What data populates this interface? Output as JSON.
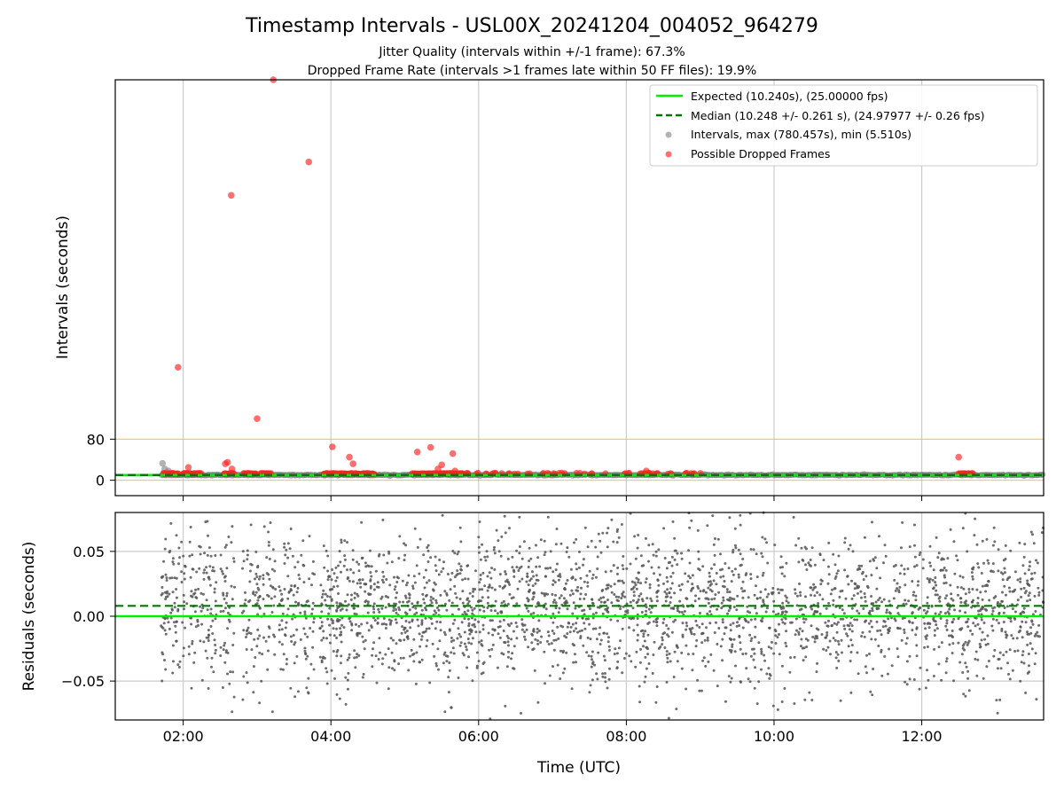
{
  "title": "Timestamp Intervals - USL00X_20241204_004052_964279",
  "subtitle_1": "Jitter Quality (intervals within +/-1 frame): 67.3%",
  "subtitle_2": "Dropped Frame Rate (intervals >1 frames late within 50 FF files): 19.9%",
  "colors": {
    "expected": "#00ee00",
    "median": "#007700",
    "intervals": "#808080",
    "dropped": "#ff2222",
    "threshold": "#f5c542",
    "residuals": "#555555",
    "grid": "#cccccc"
  },
  "chart_data": [
    {
      "type": "scatter",
      "panel": "top",
      "ylabel": "Intervals (seconds)",
      "x_unit": "hours UTC",
      "xlim": [
        1.08,
        13.65
      ],
      "ylim": [
        -30,
        780
      ],
      "yticks": [
        0,
        80
      ],
      "ytick_labels": [
        "0",
        "80"
      ],
      "threshold_line": 80,
      "grid": "x-only",
      "legend_position": "top-right",
      "legend": [
        "Expected (10.240s), (25.00000 fps)",
        "Median (10.248 +/- 0.261 s), (24.97977 +/- 0.26 fps)",
        "Intervals, max (780.457s), min (5.510s)",
        "Possible Dropped Frames"
      ],
      "expected_value": 10.24,
      "median_value": 10.248,
      "data_range_hours": [
        1.7,
        13.65
      ],
      "typical_interval": 10.25,
      "gray_outliers": [
        {
          "x": 1.72,
          "y": 33
        },
        {
          "x": 1.75,
          "y": 22
        },
        {
          "x": 1.8,
          "y": 18
        }
      ],
      "dropped_frames": [
        {
          "x": 1.93,
          "y": 220
        },
        {
          "x": 2.07,
          "y": 25
        },
        {
          "x": 2.57,
          "y": 32
        },
        {
          "x": 2.6,
          "y": 35
        },
        {
          "x": 2.65,
          "y": 555
        },
        {
          "x": 2.66,
          "y": 22
        },
        {
          "x": 3.0,
          "y": 120
        },
        {
          "x": 3.22,
          "y": 780
        },
        {
          "x": 3.7,
          "y": 620
        },
        {
          "x": 4.02,
          "y": 65
        },
        {
          "x": 4.25,
          "y": 45
        },
        {
          "x": 4.3,
          "y": 32
        },
        {
          "x": 5.17,
          "y": 55
        },
        {
          "x": 5.35,
          "y": 64
        },
        {
          "x": 5.45,
          "y": 22
        },
        {
          "x": 5.5,
          "y": 30
        },
        {
          "x": 5.65,
          "y": 52
        },
        {
          "x": 5.68,
          "y": 18
        },
        {
          "x": 8.27,
          "y": 18
        },
        {
          "x": 12.5,
          "y": 45
        }
      ],
      "dropped_clusters": [
        [
          1.73,
          1.95
        ],
        [
          2.0,
          2.25
        ],
        [
          2.55,
          2.7
        ],
        [
          2.82,
          3.0
        ],
        [
          3.05,
          3.2
        ],
        [
          3.9,
          4.3
        ],
        [
          4.3,
          4.6
        ],
        [
          5.1,
          5.8
        ],
        [
          12.5,
          12.7
        ]
      ]
    },
    {
      "type": "scatter",
      "panel": "bottom",
      "xlabel": "Time (UTC)",
      "ylabel": "Residuals (seconds)",
      "xlim": [
        1.08,
        13.65
      ],
      "ylim": [
        -0.08,
        0.08
      ],
      "yticks": [
        -0.05,
        0.0,
        0.05
      ],
      "ytick_labels": [
        "−0.05",
        "0.00",
        "0.05"
      ],
      "xticks": [
        2,
        4,
        6,
        8,
        10,
        12
      ],
      "xtick_labels": [
        "02:00",
        "04:00",
        "06:00",
        "08:00",
        "10:00",
        "12:00"
      ],
      "grid": "both",
      "expected_residual": 0.0,
      "median_residual": 0.008,
      "residual_spread_std": 0.03,
      "data_segments": [
        [
          1.7,
          2.05
        ],
        [
          2.06,
          2.45
        ],
        [
          2.5,
          2.7
        ],
        [
          2.8,
          3.1
        ],
        [
          3.12,
          3.25
        ],
        [
          3.3,
          3.6
        ],
        [
          3.62,
          3.78
        ],
        [
          3.85,
          13.65
        ]
      ]
    }
  ]
}
